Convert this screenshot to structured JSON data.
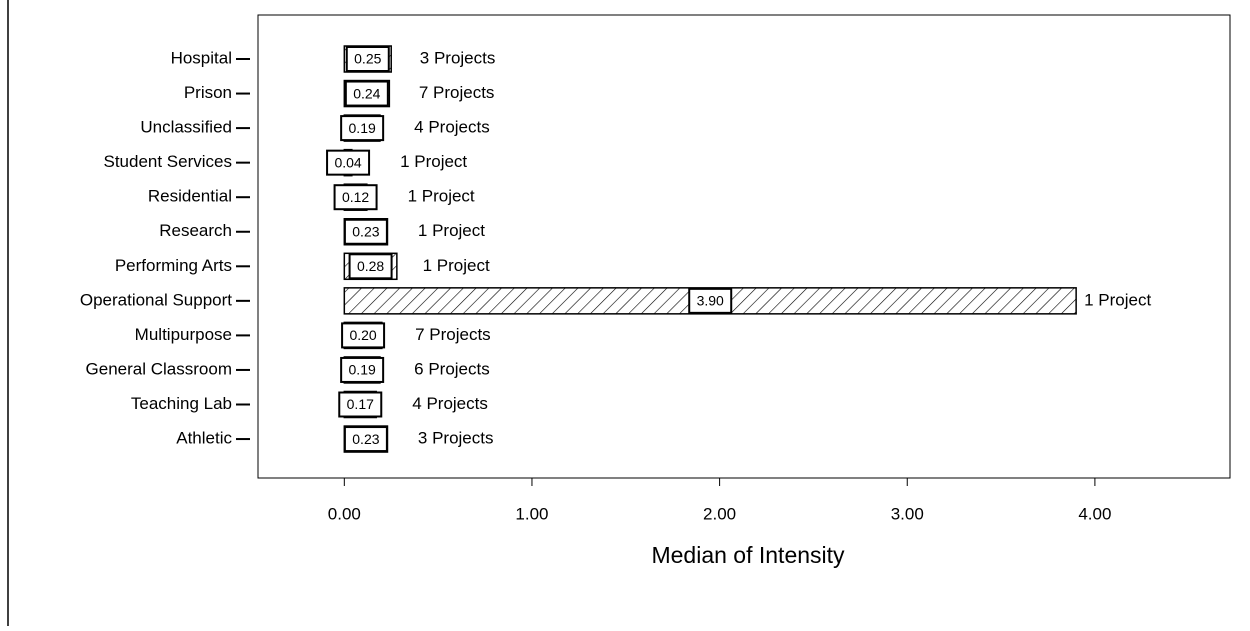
{
  "chart_data": {
    "type": "bar",
    "orientation": "horizontal",
    "categories": [
      "Hospital",
      "Prison",
      "Unclassified",
      "Student Services",
      "Residential",
      "Research",
      "Performing Arts",
      "Operational Support",
      "Multipurpose",
      "General Classroom",
      "Teaching Lab",
      "Athletic"
    ],
    "values": [
      0.25,
      0.24,
      0.19,
      0.04,
      0.12,
      0.23,
      0.28,
      3.9,
      0.2,
      0.19,
      0.17,
      0.23
    ],
    "value_labels": [
      "0.25",
      "0.24",
      "0.19",
      "0.04",
      "0.12",
      "0.23",
      "0.28",
      "3.90",
      "0.20",
      "0.19",
      "0.17",
      "0.23"
    ],
    "annotations": [
      "3 Projects",
      "7 Projects",
      "4 Projects",
      "1 Project",
      "1 Project",
      "1 Project",
      "1 Project",
      "1 Project",
      "7 Projects",
      "6 Projects",
      "4 Projects",
      "3 Projects"
    ],
    "xlabel": "Median of Intensity",
    "xlim": [
      -0.46,
      4.72
    ],
    "xticks": [
      {
        "value": 0,
        "label": "0.00"
      },
      {
        "value": 1,
        "label": "1.00"
      },
      {
        "value": 2,
        "label": "2.00"
      },
      {
        "value": 3,
        "label": "3.00"
      },
      {
        "value": 4,
        "label": "4.00"
      }
    ],
    "color": "#000000",
    "hatch": true
  }
}
